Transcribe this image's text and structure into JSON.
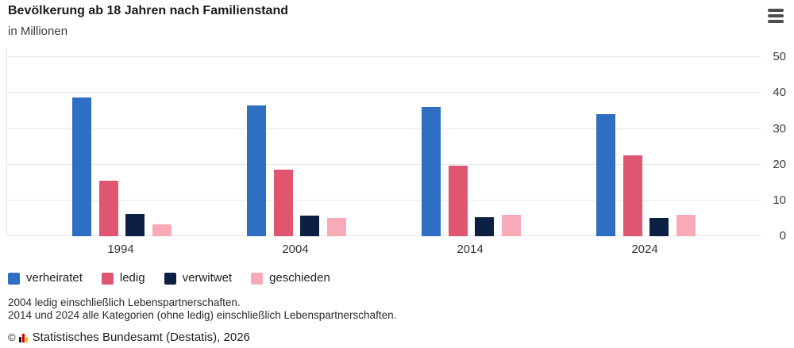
{
  "header": {
    "title": "Bevölkerung ab 18 Jahren nach Familienstand",
    "subtitle": "in Millionen",
    "menu_icon": "hamburger-menu-icon"
  },
  "chart_data": {
    "type": "bar",
    "title": "Bevölkerung ab 18 Jahren nach Familienstand",
    "ylabel": "in Millionen",
    "categories": [
      "1994",
      "2004",
      "2014",
      "2024"
    ],
    "series": [
      {
        "name": "verheiratet",
        "color": "#2e6fc3",
        "values": [
          38.7,
          36.6,
          36.0,
          34.1
        ]
      },
      {
        "name": "ledig",
        "color": "#e0556f",
        "values": [
          15.5,
          18.5,
          19.6,
          22.5
        ]
      },
      {
        "name": "verwitwet",
        "color": "#0b2043",
        "values": [
          6.1,
          5.7,
          5.4,
          5.1
        ]
      },
      {
        "name": "geschieden",
        "color": "#f9aab8",
        "values": [
          3.4,
          5.1,
          6.0,
          5.9
        ]
      }
    ],
    "y_ticks": [
      0,
      10,
      20,
      30,
      40,
      50
    ],
    "ylim": [
      0,
      52.7
    ],
    "grid": "horizontal",
    "legend_position": "bottom",
    "axis_side": "right"
  },
  "footnotes": {
    "line1": "2004 ledig einschließlich Lebenspartnerschaften.",
    "line2": "2014 und 2024 alle Kategorien (ohne ledig) einschließlich Lebenspartnerschaften."
  },
  "source": {
    "copyright": "©",
    "text": "Statistisches Bundesamt (Destatis), 2026"
  },
  "colors": {
    "gridline": "#e8e8e8",
    "axis_line": "#e3e3e3",
    "menu_icon": "#4d4d4d"
  }
}
